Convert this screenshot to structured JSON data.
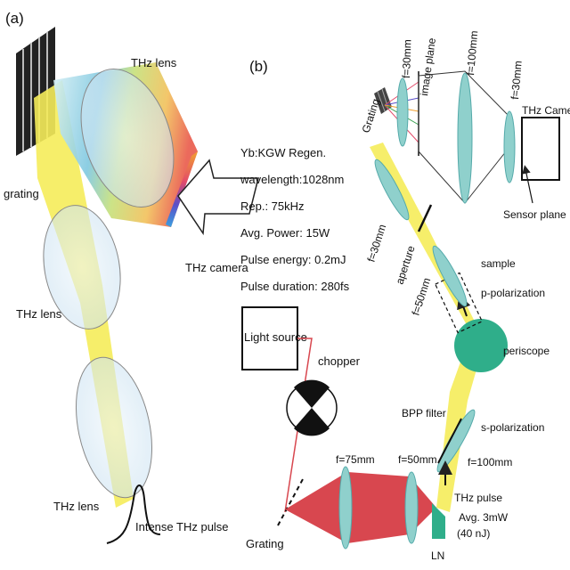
{
  "panel_a": {
    "tag": "(a)",
    "labels": {
      "grating": "grating",
      "lens1": "THz lens",
      "lens2": "THz lens",
      "lens3": "THz lens",
      "camera": "THz camera",
      "pulse": "Intense THz pulse"
    }
  },
  "panel_b": {
    "tag": "(b)",
    "source_specs": [
      "Yb:KGW Regen.",
      "wavelength:1028nm",
      "Rep.: 75kHz",
      "Avg. Power: 15W",
      "Pulse energy: 0.2mJ",
      "Pulse duration: 280fs"
    ],
    "labels": {
      "light_source": "Light source",
      "chopper": "chopper",
      "grating_bottom": "Grating",
      "f75": "f=75mm",
      "f50_bottom": "f=50mm",
      "ln": "LN",
      "thz_pulse": "THz pulse",
      "avg": "Avg. 3mW",
      "nj": "(40 nJ)",
      "f100_right": "f=100mm",
      "bpp": "BPP filter",
      "s_pol": "s-polarization",
      "periscope": "periscope",
      "p_pol": "p-polarization",
      "sample": "sample",
      "f50_mid": "f=50mm",
      "aperture": "aperture",
      "f30_left": "f=30mm",
      "grating_top": "Grating",
      "f30_top": "f=30mm",
      "image_plane": "image plane",
      "f100_top": "f=100mm",
      "f30_right": "f=30mm",
      "thz_camera": "THz Camera",
      "sensor_plane": "Sensor plane"
    }
  },
  "colors": {
    "thz_beam": "#f5e96a",
    "laser": "#d8474f",
    "lens": "#8fd0cc",
    "periscope": "#2fae8a"
  }
}
